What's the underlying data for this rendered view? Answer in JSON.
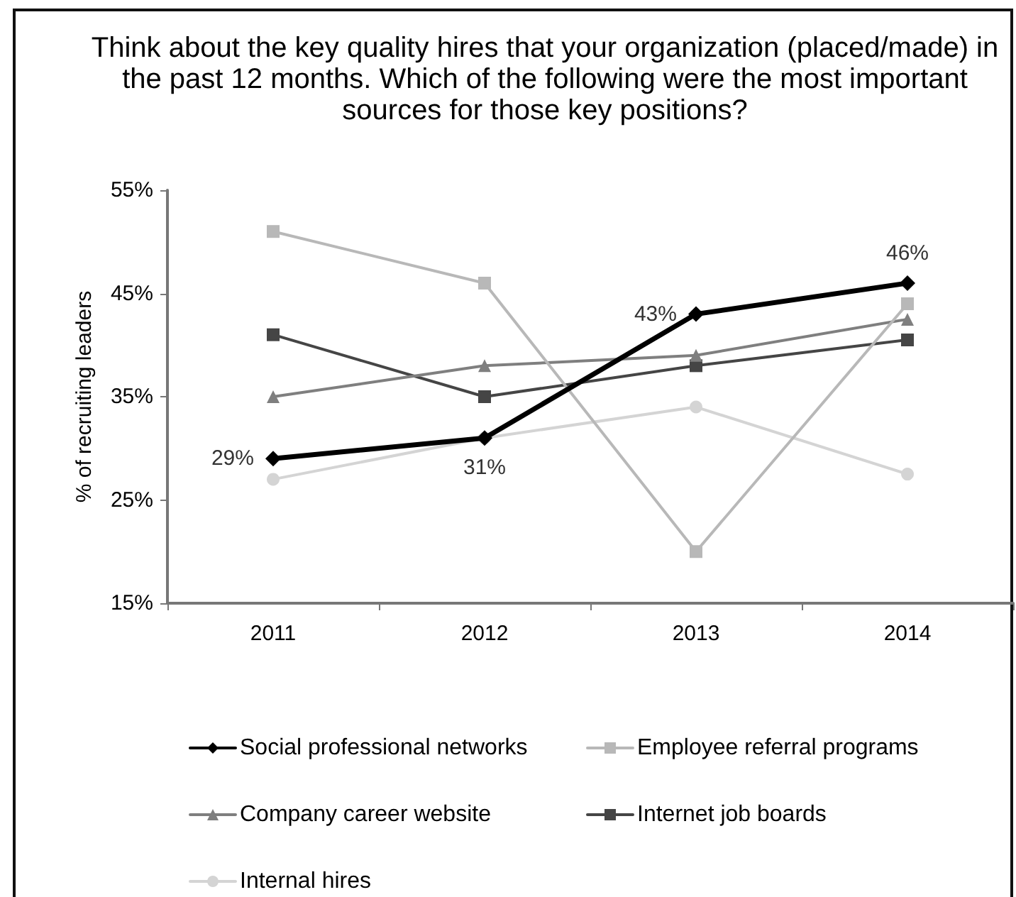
{
  "chart_data": {
    "type": "line",
    "title": "Think about the key quality hires that your organization (placed/made) in the past 12 months. Which of the following were the most important sources for those key positions?",
    "ylabel": "% of recruiting leaders",
    "categories": [
      "2011",
      "2012",
      "2013",
      "2014"
    ],
    "ylim": [
      15,
      55
    ],
    "yticks": [
      {
        "value": 15,
        "label": "15%"
      },
      {
        "value": 25,
        "label": "25%"
      },
      {
        "value": 35,
        "label": "35%"
      },
      {
        "value": 45,
        "label": "45%"
      },
      {
        "value": 55,
        "label": "55%"
      }
    ],
    "grid": false,
    "legend": "bottom",
    "line_style": "solid",
    "series": [
      {
        "name": "Social professional networks",
        "color": "#000000",
        "marker": "diamond",
        "values": [
          29,
          31,
          43,
          46
        ],
        "value_labels": [
          "29%",
          "31%",
          "43%",
          "46%"
        ]
      },
      {
        "name": "Employee referral programs",
        "color": "#b8b8b8",
        "marker": "square",
        "values": [
          51,
          46,
          20,
          44
        ]
      },
      {
        "name": "Company career website",
        "color": "#7f7f7f",
        "marker": "triangle",
        "values": [
          35,
          38,
          39,
          42.5
        ]
      },
      {
        "name": "Internet job boards",
        "color": "#454545",
        "marker": "square",
        "values": [
          41,
          35,
          38,
          40.5
        ]
      },
      {
        "name": "Internal hires",
        "color": "#d4d4d4",
        "marker": "circle",
        "values": [
          27,
          31,
          34,
          27.5
        ]
      }
    ]
  }
}
